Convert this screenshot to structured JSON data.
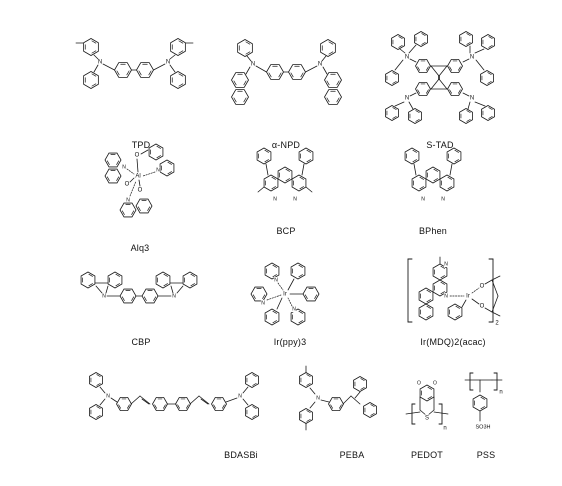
{
  "figure": {
    "molecules": [
      {
        "id": "tpd",
        "name": "TPD"
      },
      {
        "id": "anpd",
        "name": "α-NPD"
      },
      {
        "id": "stad",
        "name": "S-TAD"
      },
      {
        "id": "alq3",
        "name": "Alq3"
      },
      {
        "id": "bcp",
        "name": "BCP"
      },
      {
        "id": "bphen",
        "name": "BPhen"
      },
      {
        "id": "cbp",
        "name": "CBP"
      },
      {
        "id": "irppy3",
        "name": "Ir(ppy)3"
      },
      {
        "id": "irmdq",
        "name": "Ir(MDQ)2(acac)"
      },
      {
        "id": "bdasbi",
        "name": "BDASBi"
      },
      {
        "id": "peba",
        "name": "PEBA"
      },
      {
        "id": "pedot",
        "name": "PEDOT"
      },
      {
        "id": "pss",
        "name": "PSS"
      }
    ],
    "atom_labels": {
      "nitrogen": "N",
      "oxygen": "O",
      "aluminum": "Al",
      "iridium": "Ir",
      "sulfur": "S",
      "sulfonic_acid": "SO3H",
      "repeat": "n",
      "count_2": "2"
    }
  }
}
